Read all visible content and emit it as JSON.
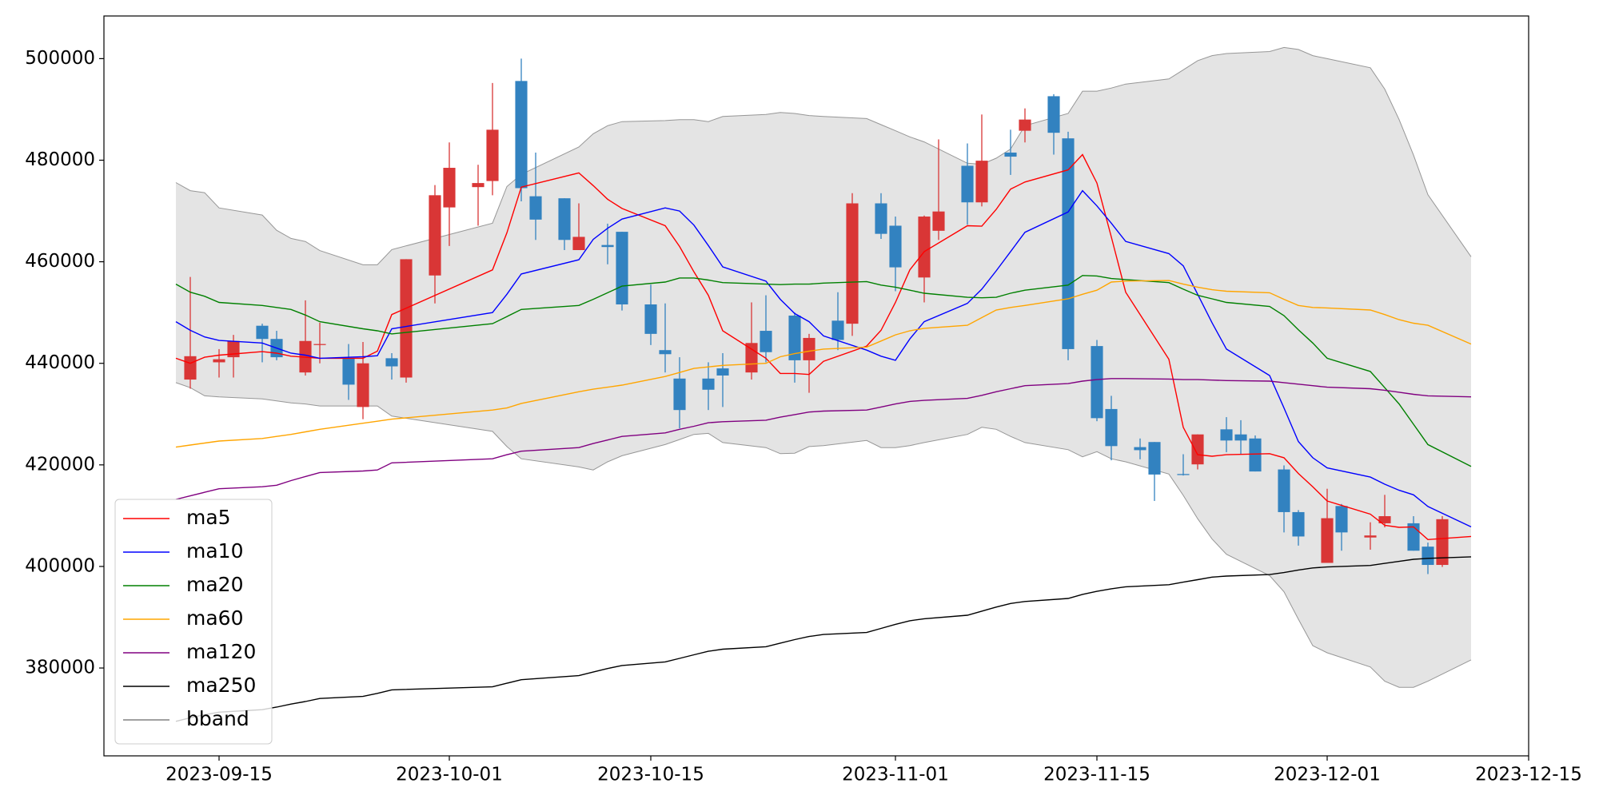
{
  "chart_data": {
    "type": "candlestick",
    "xlim": [
      "2023-09-07",
      "2023-12-15"
    ],
    "xticks": [
      "2023-09-15",
      "2023-10-01",
      "2023-10-15",
      "2023-11-01",
      "2023-11-15",
      "2023-12-01",
      "2023-12-15"
    ],
    "ylim": [
      362700,
      508400
    ],
    "yticks": [
      380000,
      400000,
      420000,
      440000,
      460000,
      480000,
      500000
    ],
    "grid": false,
    "legend": "lower left",
    "candles": {
      "up_color": "#d93636",
      "down_color": "#3282c0",
      "x": [
        "2023-09-13",
        "2023-09-15",
        "2023-09-16",
        "2023-09-18",
        "2023-09-19",
        "2023-09-21",
        "2023-09-22",
        "2023-09-24",
        "2023-09-25",
        "2023-09-27",
        "2023-09-28",
        "2023-09-30",
        "2023-10-01",
        "2023-10-03",
        "2023-10-04",
        "2023-10-06",
        "2023-10-07",
        "2023-10-09",
        "2023-10-10",
        "2023-10-12",
        "2023-10-13",
        "2023-10-15",
        "2023-10-16",
        "2023-10-17",
        "2023-10-19",
        "2023-10-20",
        "2023-10-22",
        "2023-10-23",
        "2023-10-25",
        "2023-10-26",
        "2023-10-28",
        "2023-10-29",
        "2023-10-31",
        "2023-11-01",
        "2023-11-03",
        "2023-11-04",
        "2023-11-06",
        "2023-11-07",
        "2023-11-09",
        "2023-11-10",
        "2023-11-12",
        "2023-11-13",
        "2023-11-15",
        "2023-11-16",
        "2023-11-18",
        "2023-11-19",
        "2023-11-21",
        "2023-11-22",
        "2023-11-24",
        "2023-11-25",
        "2023-11-26",
        "2023-11-28",
        "2023-11-29",
        "2023-12-01",
        "2023-12-02",
        "2023-12-04",
        "2023-12-05",
        "2023-12-07",
        "2023-12-08",
        "2023-12-09"
      ],
      "open": [
        436800,
        440200,
        441200,
        447400,
        444800,
        438200,
        443600,
        441000,
        431400,
        441000,
        437200,
        457300,
        470700,
        474700,
        475900,
        495600,
        472900,
        472500,
        462300,
        463300,
        465900,
        451600,
        442600,
        437000,
        437000,
        439000,
        438200,
        446400,
        449400,
        440600,
        448400,
        447800,
        471500,
        467100,
        456900,
        466100,
        478900,
        471700,
        481500,
        485800,
        492600,
        484300,
        443400,
        431000,
        423500,
        424500,
        418200,
        420100,
        427000,
        426000,
        425200,
        419100,
        410700,
        400700,
        411900,
        405700,
        408500,
        408500,
        403900,
        400300
      ],
      "high": [
        457000,
        442800,
        445600,
        447800,
        446400,
        452400,
        448000,
        443800,
        444200,
        442000,
        460500,
        475100,
        483500,
        479100,
        495200,
        500000,
        481500,
        472500,
        471500,
        467500,
        465900,
        455500,
        451800,
        441200,
        440200,
        442000,
        452000,
        453400,
        450000,
        445800,
        454000,
        473500,
        473500,
        468900,
        469100,
        484100,
        483300,
        489000,
        486000,
        490200,
        493000,
        485600,
        444600,
        433600,
        425200,
        424500,
        422100,
        426000,
        429400,
        428800,
        425800,
        419900,
        411100,
        415300,
        412300,
        408700,
        414100,
        409900,
        404700,
        409900
      ],
      "low": [
        435000,
        437200,
        437200,
        440200,
        440600,
        437600,
        440000,
        432800,
        429000,
        436800,
        436200,
        451800,
        463100,
        467100,
        473100,
        471900,
        464300,
        462300,
        462300,
        459500,
        450400,
        443600,
        438200,
        427200,
        430800,
        431400,
        436800,
        440200,
        436200,
        434200,
        442600,
        445400,
        464500,
        454200,
        452000,
        464300,
        467300,
        470900,
        477100,
        483500,
        481100,
        440600,
        428600,
        420900,
        421100,
        412900,
        417900,
        419100,
        422500,
        422100,
        418700,
        406700,
        404100,
        400700,
        403100,
        403300,
        407700,
        403100,
        398500,
        399900
      ],
      "close": [
        441400,
        440800,
        444400,
        444800,
        441200,
        444400,
        443800,
        435800,
        440000,
        439400,
        460500,
        473100,
        478500,
        475500,
        486000,
        474500,
        468300,
        464300,
        464900,
        462900,
        451600,
        445800,
        441800,
        430800,
        434800,
        437600,
        444000,
        442200,
        440600,
        445000,
        444600,
        471500,
        465500,
        458900,
        468900,
        469900,
        471700,
        479900,
        480700,
        488000,
        485400,
        442800,
        429200,
        423700,
        422900,
        418100,
        418000,
        426000,
        424800,
        424800,
        418700,
        410700,
        405900,
        409500,
        406700,
        406100,
        409900,
        403100,
        400300,
        409300
      ]
    },
    "x": [
      "2023-09-12",
      "2023-09-13",
      "2023-09-14",
      "2023-09-15",
      "2023-09-18",
      "2023-09-19",
      "2023-09-20",
      "2023-09-21",
      "2023-09-22",
      "2023-09-25",
      "2023-09-26",
      "2023-09-27",
      "2023-10-04",
      "2023-10-05",
      "2023-10-06",
      "2023-10-10",
      "2023-10-11",
      "2023-10-12",
      "2023-10-13",
      "2023-10-16",
      "2023-10-17",
      "2023-10-18",
      "2023-10-19",
      "2023-10-20",
      "2023-10-23",
      "2023-10-24",
      "2023-10-25",
      "2023-10-26",
      "2023-10-27",
      "2023-10-30",
      "2023-10-31",
      "2023-11-01",
      "2023-11-02",
      "2023-11-03",
      "2023-11-06",
      "2023-11-07",
      "2023-11-08",
      "2023-11-09",
      "2023-11-10",
      "2023-11-13",
      "2023-11-14",
      "2023-11-15",
      "2023-11-16",
      "2023-11-17",
      "2023-11-20",
      "2023-11-21",
      "2023-11-22",
      "2023-11-23",
      "2023-11-24",
      "2023-11-27",
      "2023-11-28",
      "2023-11-29",
      "2023-11-30",
      "2023-12-01",
      "2023-12-04",
      "2023-12-05",
      "2023-12-06",
      "2023-12-07",
      "2023-12-08",
      "2023-12-11"
    ],
    "series": [
      {
        "name": "ma5",
        "color": "red",
        "values": [
          441000,
          440000,
          441200,
          441600,
          442300,
          442000,
          441400,
          441200,
          441000,
          441000,
          442400,
          449600,
          458400,
          465700,
          474700,
          477500,
          475000,
          472300,
          470500,
          467100,
          463000,
          458000,
          453400,
          446400,
          441000,
          438000,
          438000,
          437800,
          440400,
          443400,
          446500,
          452000,
          458400,
          462000,
          467100,
          467000,
          470300,
          474300,
          475700,
          478100,
          481100,
          475500,
          464900,
          454000,
          440800,
          427400,
          422000,
          421700,
          422000,
          422200,
          421400,
          418300,
          415700,
          412900,
          410300,
          408100,
          407700,
          407800,
          405300,
          405900
        ]
      },
      {
        "name": "ma10",
        "color": "blue",
        "values": [
          448200,
          446500,
          445200,
          444500,
          444000,
          443000,
          442000,
          441600,
          441000,
          441300,
          441500,
          446800,
          450000,
          453600,
          457600,
          460400,
          464400,
          466600,
          468400,
          470600,
          470000,
          467200,
          463200,
          459000,
          456200,
          452600,
          449800,
          448200,
          445400,
          442600,
          441400,
          440600,
          444800,
          448200,
          451800,
          454600,
          458200,
          462000,
          465800,
          469800,
          474000,
          471000,
          467600,
          464000,
          461600,
          459200,
          453600,
          448000,
          442800,
          437600,
          431200,
          424600,
          421400,
          419400,
          417600,
          416200,
          415000,
          414100,
          411800,
          407800
        ]
      },
      {
        "name": "ma20",
        "color": "green",
        "values": [
          455600,
          454000,
          453200,
          452000,
          451400,
          451000,
          450600,
          449500,
          448200,
          446800,
          446400,
          445800,
          447800,
          449200,
          450600,
          451400,
          452600,
          453900,
          455200,
          456000,
          456800,
          456800,
          456400,
          455900,
          455600,
          455500,
          455600,
          455600,
          455800,
          456100,
          455400,
          455000,
          454400,
          453800,
          453000,
          452900,
          453000,
          453800,
          454400,
          455400,
          457300,
          457200,
          456700,
          456500,
          455900,
          454600,
          453400,
          452700,
          452000,
          451200,
          449400,
          446600,
          444000,
          441000,
          438400,
          435200,
          432000,
          428000,
          424000,
          419700
        ]
      },
      {
        "name": "ma60",
        "color": "orange",
        "values": [
          423500,
          423900,
          424300,
          424700,
          425200,
          425600,
          426000,
          426500,
          427000,
          428200,
          428600,
          429000,
          430800,
          431200,
          432100,
          434400,
          434900,
          435300,
          435700,
          437400,
          438200,
          439000,
          439300,
          439600,
          440000,
          441300,
          441900,
          442400,
          442800,
          443200,
          444400,
          445600,
          446400,
          446900,
          447500,
          449000,
          450500,
          451000,
          451400,
          452700,
          453600,
          454400,
          456000,
          456200,
          456300,
          455600,
          455000,
          454500,
          454200,
          453900,
          452600,
          451400,
          451000,
          450900,
          450500,
          449600,
          448600,
          447900,
          447500,
          443800
        ]
      },
      {
        "name": "ma120",
        "color": "purple",
        "values": [
          413200,
          413900,
          414600,
          415300,
          415700,
          416000,
          416900,
          417700,
          418500,
          418800,
          419000,
          420400,
          421200,
          422000,
          422700,
          423400,
          424200,
          424900,
          425600,
          426300,
          427000,
          427600,
          428300,
          428500,
          428800,
          429400,
          429900,
          430400,
          430600,
          430800,
          431400,
          432000,
          432500,
          432700,
          433100,
          433700,
          434400,
          435000,
          435600,
          436000,
          436500,
          436800,
          437000,
          437000,
          436900,
          436800,
          436800,
          436700,
          436600,
          436500,
          436200,
          435900,
          435600,
          435300,
          435000,
          434700,
          434300,
          433900,
          433600,
          433400
        ]
      },
      {
        "name": "ma250",
        "color": "black",
        "values": [
          369500,
          370200,
          370800,
          371300,
          371800,
          372300,
          372900,
          373400,
          374000,
          374400,
          375000,
          375700,
          376300,
          377000,
          377700,
          378500,
          379200,
          379900,
          380500,
          381200,
          381900,
          382600,
          383300,
          383700,
          384200,
          384900,
          385600,
          386200,
          386600,
          387000,
          387800,
          388600,
          389300,
          389700,
          390400,
          391200,
          392000,
          392700,
          393100,
          393700,
          394500,
          395100,
          395600,
          396000,
          396400,
          396900,
          397400,
          397900,
          398100,
          398400,
          398800,
          399300,
          399700,
          399900,
          400200,
          400600,
          401000,
          401400,
          401600,
          401900
        ]
      }
    ],
    "bband": {
      "name": "bband",
      "color": "gray",
      "fill": "#e4e4e4",
      "upper": [
        475600,
        474000,
        473600,
        470600,
        469200,
        466200,
        464600,
        464000,
        462200,
        459400,
        459400,
        462400,
        467600,
        474800,
        477200,
        482600,
        485200,
        486800,
        487600,
        487800,
        488000,
        488000,
        487600,
        488600,
        489000,
        489400,
        489200,
        488800,
        488600,
        488200,
        487000,
        485800,
        484600,
        483600,
        479400,
        479200,
        480400,
        482200,
        486800,
        489200,
        493600,
        493600,
        494200,
        495000,
        496000,
        497800,
        499600,
        500600,
        501000,
        501400,
        502200,
        501800,
        500600,
        500000,
        498200,
        494000,
        488000,
        481000,
        473200,
        461000
      ],
      "lower": [
        436200,
        435200,
        433600,
        433400,
        433000,
        432600,
        432200,
        432000,
        431600,
        431600,
        431600,
        429600,
        426600,
        423600,
        421200,
        419600,
        419000,
        420600,
        421800,
        424000,
        425000,
        426000,
        426200,
        424400,
        423400,
        422200,
        422300,
        423600,
        423800,
        424800,
        423400,
        423400,
        423800,
        424400,
        426000,
        427400,
        427000,
        425600,
        424400,
        423000,
        421600,
        422600,
        421200,
        420600,
        418200,
        414000,
        409400,
        405400,
        402400,
        398200,
        395000,
        389600,
        384400,
        383000,
        380200,
        377400,
        376200,
        376200,
        377400,
        381600
      ]
    }
  }
}
